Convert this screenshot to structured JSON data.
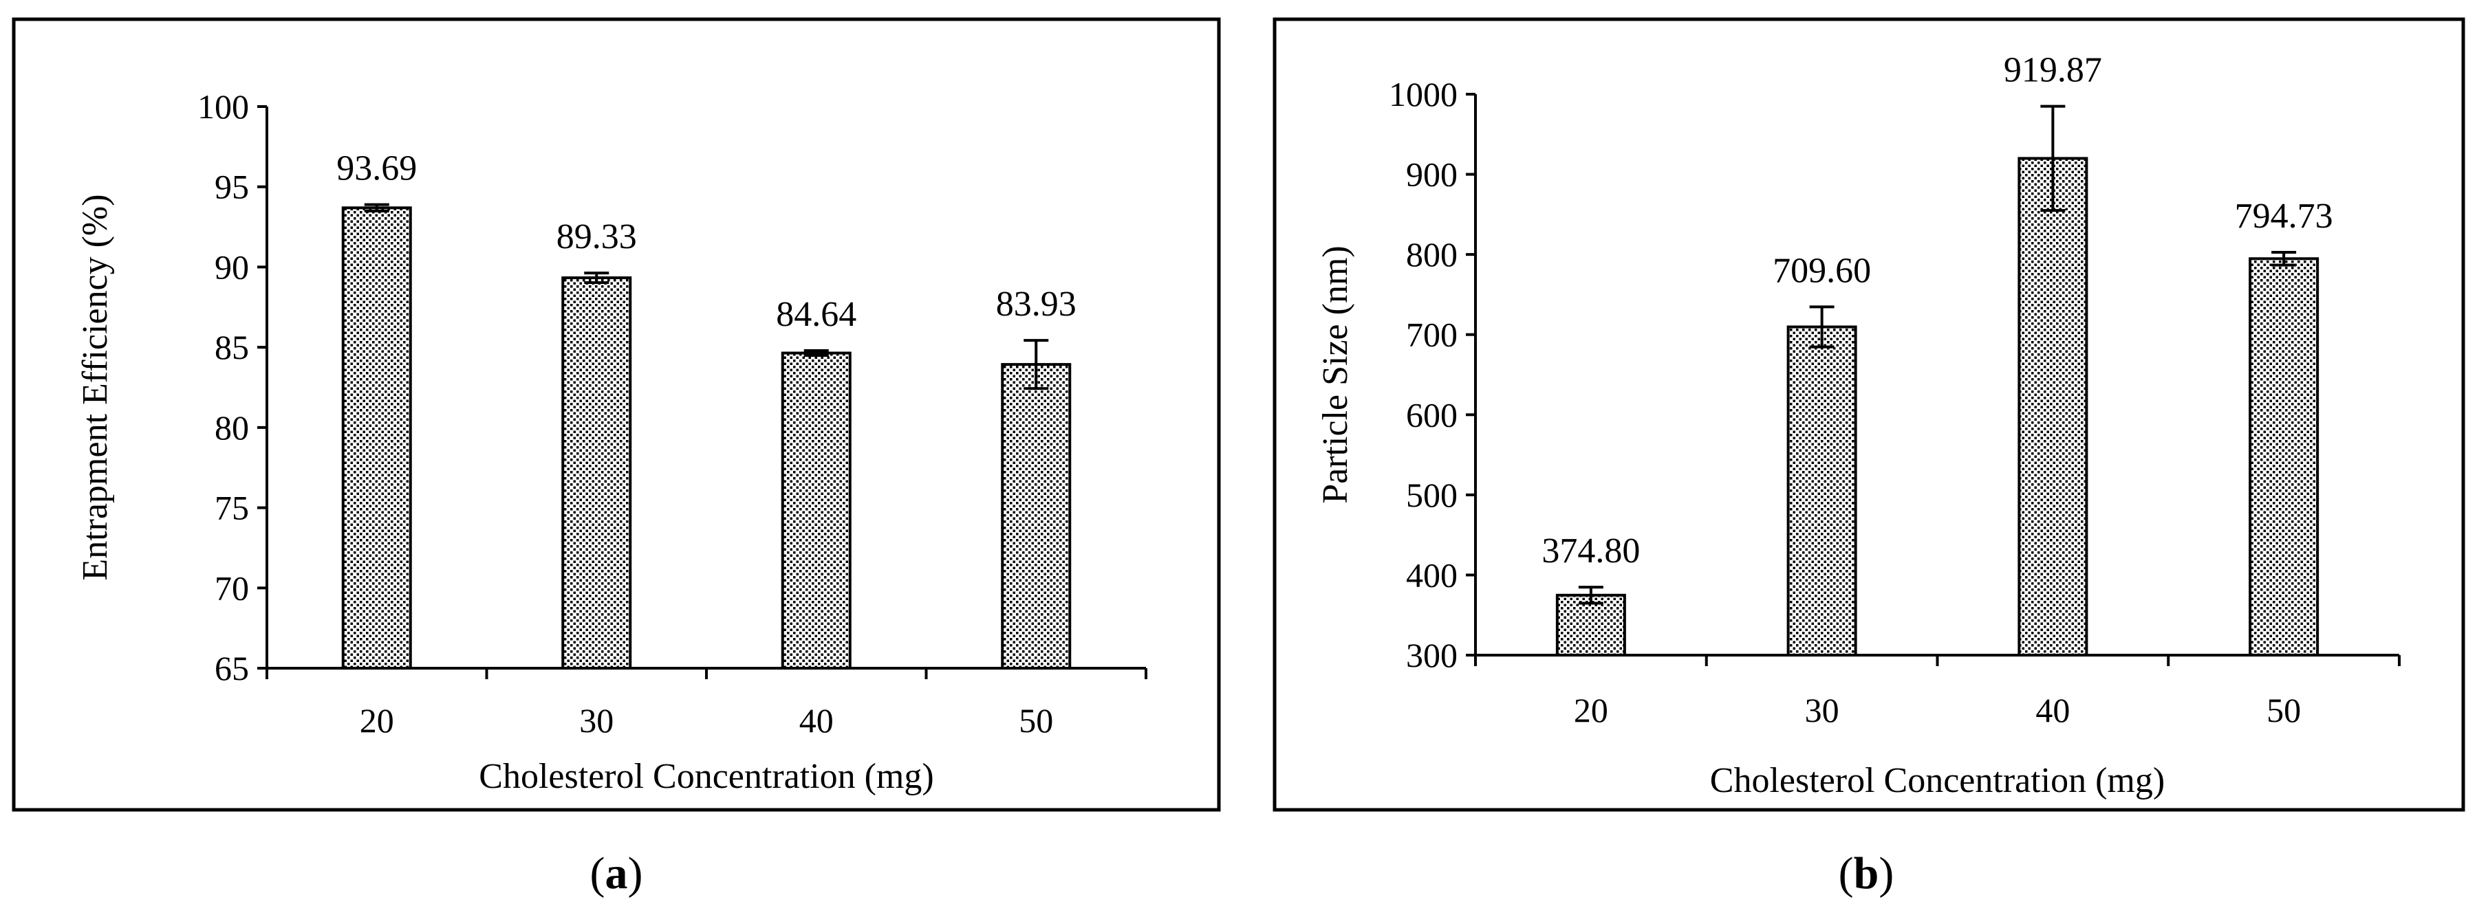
{
  "chart_data": [
    {
      "type": "bar",
      "panel_label": "(a)",
      "categories": [
        "20",
        "30",
        "40",
        "50"
      ],
      "values": [
        93.69,
        89.33,
        84.64,
        83.93
      ],
      "value_labels": [
        "93.69",
        "89.33",
        "84.64",
        "83.93"
      ],
      "errors": [
        0.2,
        0.3,
        0.15,
        1.5
      ],
      "xlabel": "Cholesterol Concentration (mg)",
      "ylabel": "Entrapment Efficiency (%)",
      "ylim": [
        65,
        100
      ],
      "yticks": [
        "65",
        "70",
        "75",
        "80",
        "85",
        "90",
        "95",
        "100"
      ],
      "grid": false,
      "fill": "dotted pattern"
    },
    {
      "type": "bar",
      "panel_label": "(b)",
      "categories": [
        "20",
        "30",
        "40",
        "50"
      ],
      "values": [
        374.8,
        709.6,
        919.87,
        794.73
      ],
      "value_labels": [
        "374.80",
        "709.60",
        "919.87",
        "794.73"
      ],
      "errors": [
        10,
        25,
        65,
        8
      ],
      "xlabel": "Cholesterol Concentration (mg)",
      "ylabel": "Particle Size (nm)",
      "ylim": [
        300,
        1000
      ],
      "yticks": [
        "300",
        "400",
        "500",
        "600",
        "700",
        "800",
        "900",
        "1000"
      ],
      "grid": false,
      "fill": "dotted pattern"
    }
  ]
}
